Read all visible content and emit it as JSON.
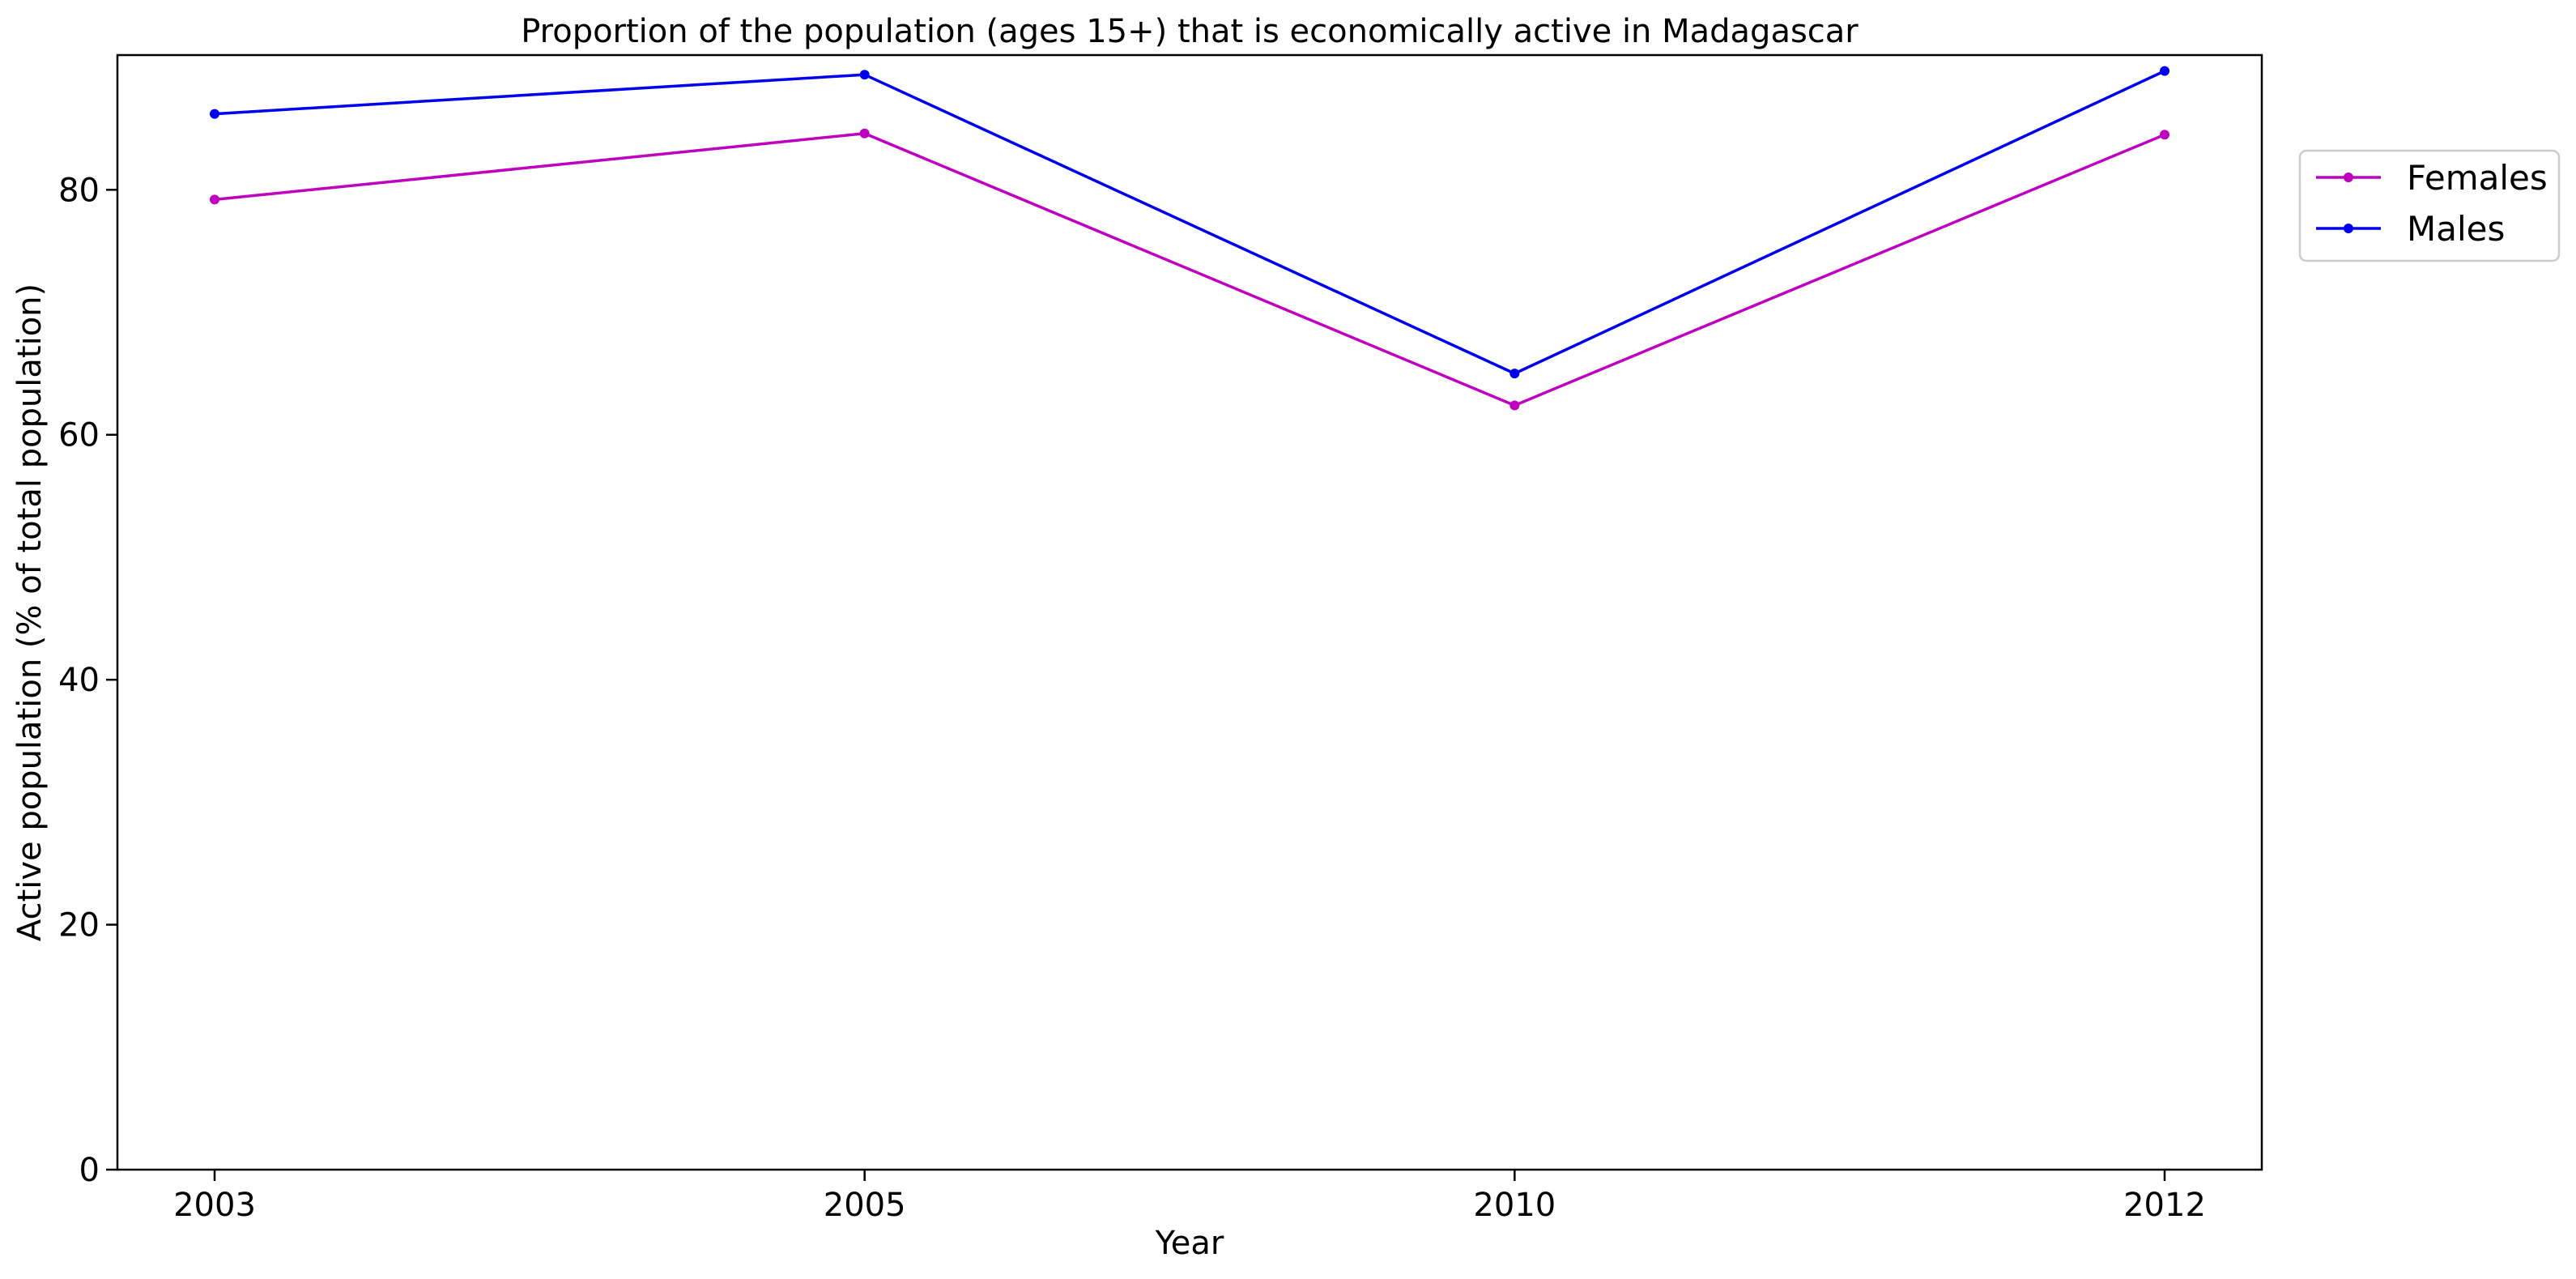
{
  "chart_data": {
    "type": "line",
    "title": "Proportion of the population (ages 15+) that is economically active in Madagascar",
    "xlabel": "Year",
    "ylabel": "Active population (% of total population)",
    "categories": [
      "2003",
      "2005",
      "2010",
      "2012"
    ],
    "ylim": [
      0,
      91
    ],
    "yticks": [
      0,
      20,
      40,
      60,
      80
    ],
    "grid": false,
    "legend_position": "outside-right-top",
    "series": [
      {
        "name": "Females",
        "color": "#bf00bf",
        "values": [
          79.2,
          84.6,
          62.4,
          84.5
        ]
      },
      {
        "name": "Males",
        "color": "#0000ee",
        "values": [
          86.2,
          89.4,
          65.0,
          89.7
        ]
      }
    ]
  }
}
